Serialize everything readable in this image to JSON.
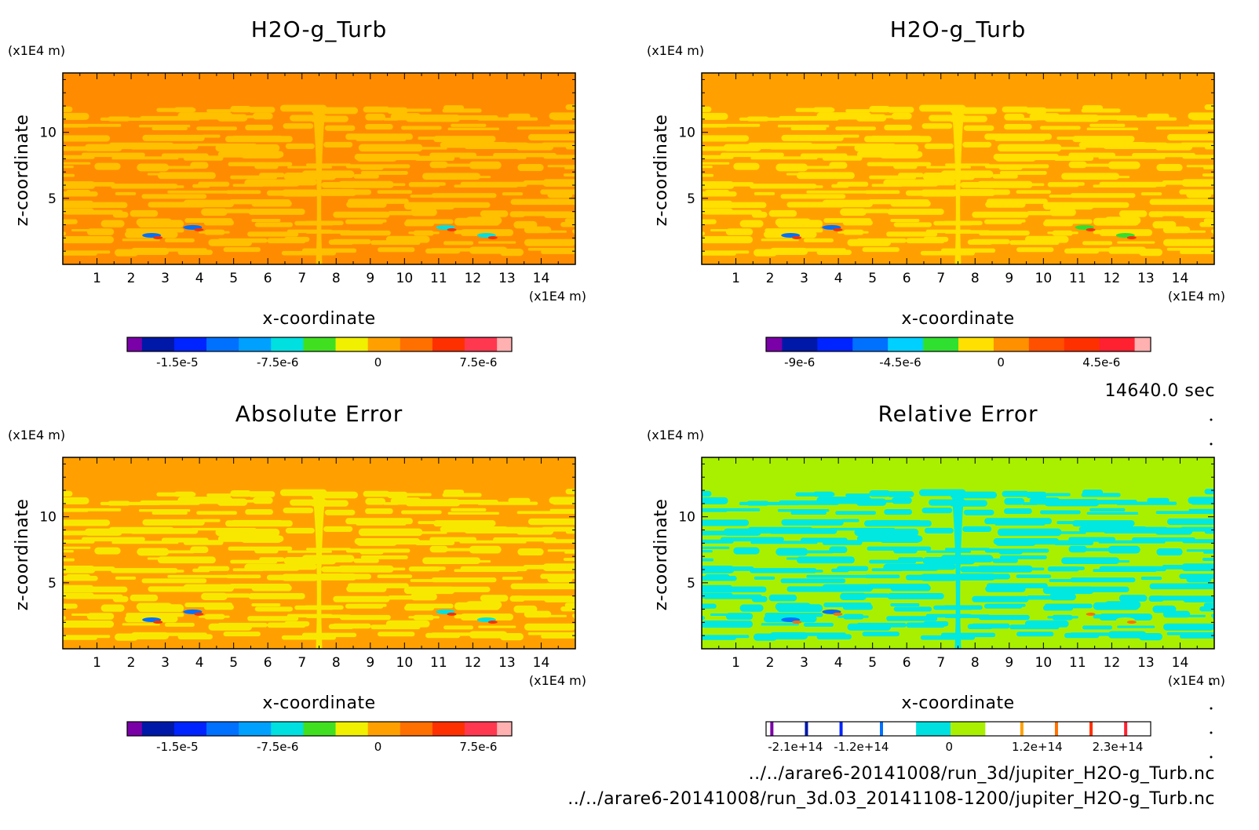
{
  "time_label": "14640.0 sec",
  "files": [
    "../../arare6-20141008/run_3d/jupiter_H2O-g_Turb.nc",
    "../../arare6-20141008/run_3d.03_20141108-1200/jupiter_H2O-g_Turb.nc"
  ],
  "chart_data": [
    {
      "type": "heatmap",
      "title": "H2O-g_Turb",
      "xlabel": "x-coordinate",
      "ylabel": "z-coordinate",
      "x_unit": "(x1E4 m)",
      "y_unit": "(x1E4 m)",
      "xlim": [
        0,
        15
      ],
      "ylim": [
        0,
        14.5
      ],
      "x_ticks": [
        "1",
        "2",
        "3",
        "4",
        "5",
        "6",
        "7",
        "8",
        "9",
        "10",
        "11",
        "12",
        "13",
        "14"
      ],
      "y_ticks": [
        "5",
        "10"
      ],
      "colorbar": {
        "colors": [
          "#7a00a8",
          "#0018a8",
          "#0024ff",
          "#0070ff",
          "#00a0ff",
          "#00e0e0",
          "#40e020",
          "#f0f000",
          "#ffa000",
          "#ff7000",
          "#ff3000",
          "#ff3850",
          "#ffb0b0"
        ],
        "tick_labels": [
          "-1.5e-5",
          "-7.5e-6",
          "0",
          "7.5e-6"
        ]
      },
      "background_color": "#ff8c00",
      "pattern_color": "#ffc000",
      "dominant_range": "0 to 1.25e-6"
    },
    {
      "type": "heatmap",
      "title": "H2O-g_Turb",
      "xlabel": "x-coordinate",
      "ylabel": "z-coordinate",
      "x_unit": "(x1E4 m)",
      "y_unit": "(x1E4 m)",
      "xlim": [
        0,
        15
      ],
      "ylim": [
        0,
        14.5
      ],
      "x_ticks": [
        "1",
        "2",
        "3",
        "4",
        "5",
        "6",
        "7",
        "8",
        "9",
        "10",
        "11",
        "12",
        "13",
        "14"
      ],
      "y_ticks": [
        "5",
        "10"
      ],
      "colorbar": {
        "colors": [
          "#7a00a8",
          "#0018a8",
          "#0024ff",
          "#0070ff",
          "#00d0ff",
          "#30e030",
          "#ffe000",
          "#ff9000",
          "#ff5000",
          "#ff3000",
          "#ff2030",
          "#ffb0b0"
        ],
        "tick_labels": [
          "-9e-6",
          "-4.5e-6",
          "0",
          "4.5e-6"
        ]
      },
      "background_color": "#ffa000",
      "pattern_color": "#ffe000",
      "dominant_range": "-7.5e-7 to 7.5e-7"
    },
    {
      "type": "heatmap",
      "title": "Absolute Error",
      "xlabel": "x-coordinate",
      "ylabel": "z-coordinate",
      "x_unit": "(x1E4 m)",
      "y_unit": "(x1E4 m)",
      "xlim": [
        0,
        15
      ],
      "ylim": [
        0,
        14.5
      ],
      "x_ticks": [
        "1",
        "2",
        "3",
        "4",
        "5",
        "6",
        "7",
        "8",
        "9",
        "10",
        "11",
        "12",
        "13",
        "14"
      ],
      "y_ticks": [
        "5",
        "10"
      ],
      "colorbar": {
        "colors": [
          "#7a00a8",
          "#0018a8",
          "#0024ff",
          "#0070ff",
          "#00a0ff",
          "#00e0e0",
          "#40e020",
          "#f0f000",
          "#ffa000",
          "#ff7000",
          "#ff3000",
          "#ff3850",
          "#ffb0b0"
        ],
        "tick_labels": [
          "-1.5e-5",
          "-7.5e-6",
          "0",
          "7.5e-6"
        ]
      },
      "background_color": "#ffa000",
      "pattern_color": "#f8e800",
      "dominant_range": "0 to 1.25e-6"
    },
    {
      "type": "heatmap",
      "title": "Relative Error",
      "xlabel": "x-coordinate",
      "ylabel": "z-coordinate",
      "x_unit": "(x1E4 m)",
      "y_unit": "(x1E4 m)",
      "xlim": [
        0,
        15
      ],
      "ylim": [
        0,
        14.5
      ],
      "x_ticks": [
        "1",
        "2",
        "3",
        "4",
        "5",
        "6",
        "7",
        "8",
        "9",
        "10",
        "11",
        "12",
        "13",
        "14"
      ],
      "y_ticks": [
        "5",
        "10"
      ],
      "colorbar": {
        "colors": [
          "#7a00a8",
          "#0018a8",
          "#0024ff",
          "#0070ff",
          "#00e0e0",
          "#a8f000",
          "#ffa000",
          "#ff7000",
          "#ff3000",
          "#ff2030"
        ],
        "tick_labels": [
          "-2.1e+14",
          "-1.2e+14",
          "0",
          "1.2e+14",
          "2.3e+14"
        ]
      },
      "background_color": "#a8f000",
      "pattern_color": "#00e8e0",
      "dominant_range": "-1e+13 to 1e+13"
    }
  ]
}
